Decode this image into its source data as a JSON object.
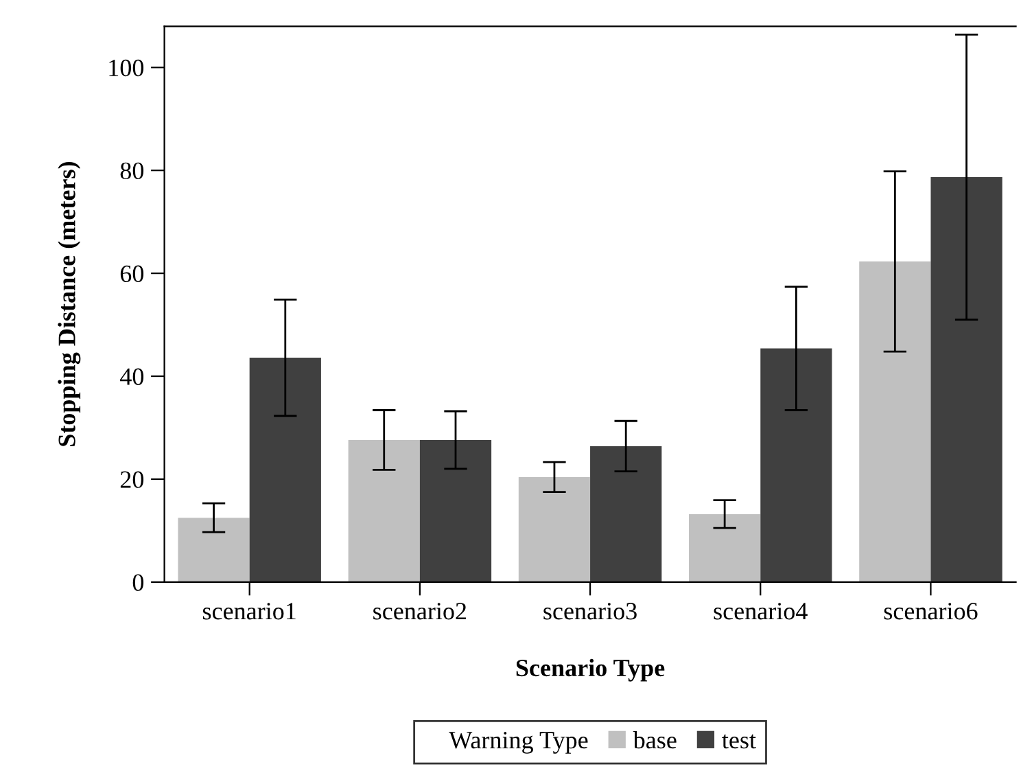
{
  "chart_data": {
    "type": "bar",
    "xlabel": "Scenario Type",
    "ylabel": "Stopping Distance (meters)",
    "legend_title": "Warning Type",
    "categories": [
      "scenario1",
      "scenario2",
      "scenario3",
      "scenario4",
      "scenario6"
    ],
    "series": [
      {
        "name": "base",
        "color": "#c0c0c0",
        "values": [
          12.5,
          27.6,
          20.4,
          13.2,
          62.3
        ],
        "errors": [
          2.8,
          5.8,
          2.9,
          2.7,
          17.5
        ]
      },
      {
        "name": "test",
        "color": "#404040",
        "values": [
          43.6,
          27.6,
          26.4,
          45.4,
          78.7
        ],
        "errors": [
          11.3,
          5.6,
          4.9,
          12.0,
          27.7
        ]
      }
    ],
    "ylim": [
      0,
      108
    ],
    "yticks": [
      0,
      20,
      40,
      60,
      80,
      100
    ],
    "grid": false,
    "legend": "bottom"
  }
}
